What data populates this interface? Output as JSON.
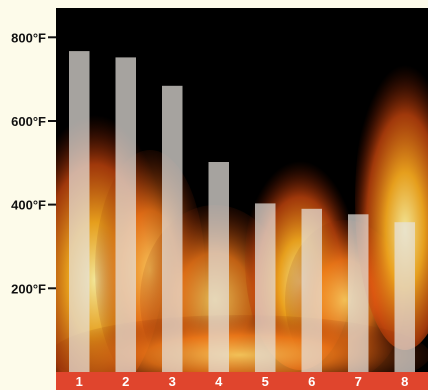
{
  "chart_data": {
    "type": "bar",
    "categories": [
      "1",
      "2",
      "3",
      "4",
      "5",
      "6",
      "7",
      "8"
    ],
    "values": [
      767,
      752,
      684,
      502,
      403,
      390,
      377,
      358
    ],
    "y_ticks": [
      {
        "value": 200,
        "label": "200°F"
      },
      {
        "value": 400,
        "label": "400°F"
      },
      {
        "value": 600,
        "label": "600°F"
      },
      {
        "value": 800,
        "label": "800°F"
      }
    ],
    "ylim": [
      0,
      870
    ],
    "title": "",
    "xlabel": "",
    "ylabel": "",
    "grid": false,
    "colors": {
      "bar": "#e6e2dc",
      "category_band": "#e0452d",
      "plot_background": "#000000",
      "page_background": "#fdfbea"
    }
  }
}
